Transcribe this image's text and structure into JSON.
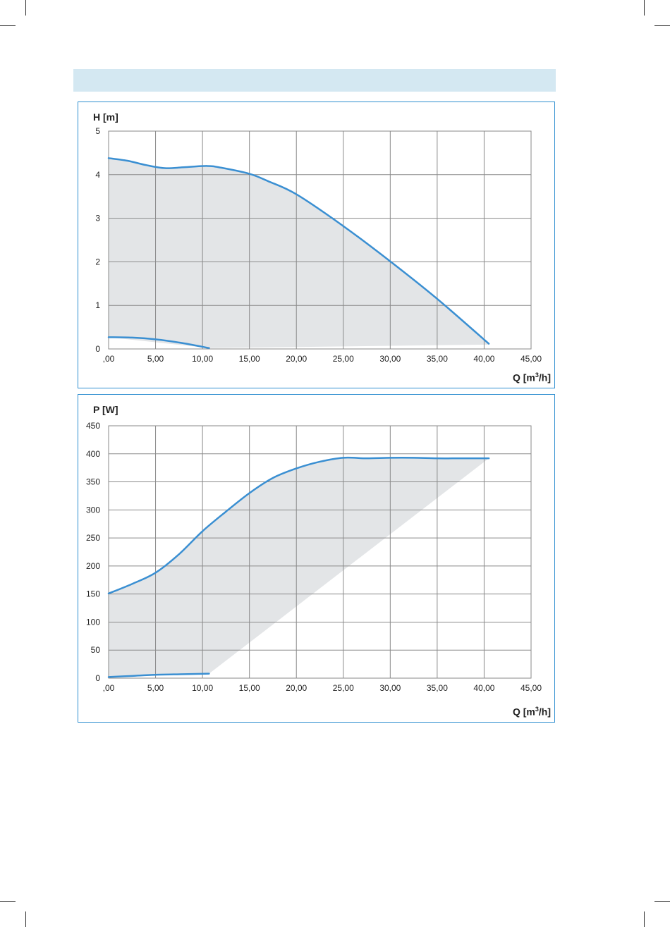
{
  "banner": {
    "text": ""
  },
  "chart_data": [
    {
      "type": "area",
      "ylabel": "H [m]",
      "xlabel_prefix": "Q [m",
      "xlabel_sup": "3",
      "xlabel_suffix": "/h]",
      "xlim": [
        0,
        45
      ],
      "ylim": [
        0,
        5
      ],
      "xticks": [
        0,
        5,
        10,
        15,
        20,
        25,
        30,
        35,
        40,
        45
      ],
      "xtick_labels": [
        ",00",
        "5,00",
        "10,00",
        "15,00",
        "20,00",
        "25,00",
        "30,00",
        "35,00",
        "40,00",
        "45,00"
      ],
      "yticks": [
        0,
        1,
        2,
        3,
        4,
        5
      ],
      "ytick_labels": [
        "0",
        "1",
        "2",
        "3",
        "4",
        "5"
      ],
      "grid": true,
      "colors": {
        "line": "#3a8fd2",
        "area": "#e3e5e7",
        "grid": "#8a8a8a"
      },
      "series": [
        {
          "x": [
            0,
            2,
            4,
            6,
            8,
            10.5,
            12,
            15,
            17,
            20,
            25,
            30,
            35,
            40.5
          ],
          "y": [
            4.38,
            4.32,
            4.22,
            4.15,
            4.17,
            4.2,
            4.16,
            4.02,
            3.85,
            3.55,
            2.82,
            2.01,
            1.15,
            0.12
          ]
        },
        {
          "x": [
            0,
            2.5,
            5,
            8,
            10.7
          ],
          "y": [
            0.27,
            0.26,
            0.22,
            0.13,
            0.02
          ]
        }
      ],
      "area_bottom": {
        "x": [
          0,
          10.7,
          40.5
        ],
        "y": [
          0.27,
          0.02,
          0.1
        ]
      }
    },
    {
      "type": "area",
      "ylabel": "P [W]",
      "xlabel_prefix": "Q [m",
      "xlabel_sup": "3",
      "xlabel_suffix": "/h]",
      "xlim": [
        0,
        45
      ],
      "ylim": [
        0,
        450
      ],
      "xticks": [
        0,
        5,
        10,
        15,
        20,
        25,
        30,
        35,
        40,
        45
      ],
      "xtick_labels": [
        ",00",
        "5,00",
        "10,00",
        "15,00",
        "20,00",
        "25,00",
        "30,00",
        "35,00",
        "40,00",
        "45,00"
      ],
      "yticks": [
        0,
        50,
        100,
        150,
        200,
        250,
        300,
        350,
        400,
        450
      ],
      "ytick_labels": [
        "0",
        "50",
        "100",
        "150",
        "200",
        "250",
        "300",
        "350",
        "400",
        "450"
      ],
      "grid": true,
      "colors": {
        "line": "#3a8fd2",
        "area": "#e3e5e7",
        "grid": "#8a8a8a"
      },
      "series": [
        {
          "x": [
            0,
            2.5,
            5,
            7.5,
            10,
            12.5,
            15,
            17.5,
            20,
            22.5,
            25,
            27.5,
            30,
            32.5,
            35,
            37.5,
            40.5
          ],
          "y": [
            151,
            168,
            188,
            221,
            262,
            297,
            330,
            357,
            374,
            386,
            393,
            392,
            393,
            393,
            392,
            392,
            392
          ]
        },
        {
          "x": [
            0,
            2.5,
            5,
            8,
            10.7
          ],
          "y": [
            2,
            4,
            6,
            7,
            8
          ]
        }
      ],
      "area_bottom": {
        "x": [
          0,
          10.7,
          40.5
        ],
        "y": [
          2,
          8,
          392
        ]
      }
    }
  ]
}
